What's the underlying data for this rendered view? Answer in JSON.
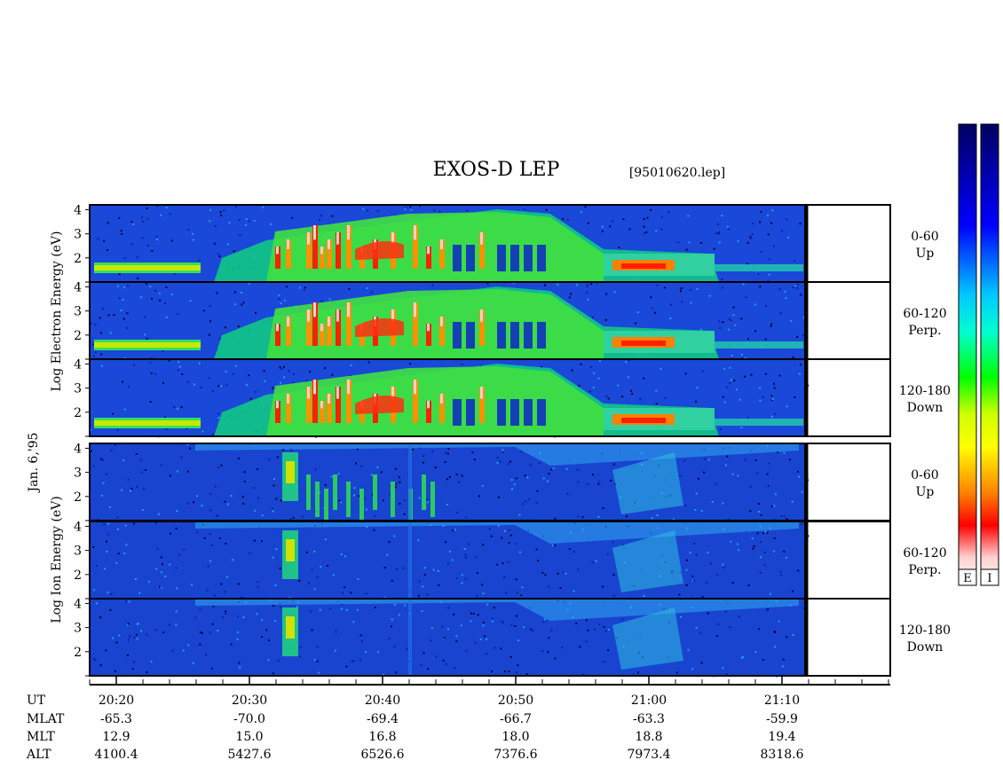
{
  "title": "EXOS-D LEP",
  "file_label": "[95010620.lep]",
  "date_label": "Jan. 6,'95",
  "electron_ylabel": "Log  Electron  Energy  (eV)",
  "ion_ylabel": "Log  Ion  Energy  (eV)",
  "panels": [
    {
      "species": "Electron",
      "angle": "0-60",
      "dir": "Up"
    },
    {
      "species": "Electron",
      "angle": "60-120",
      "dir": "Perp."
    },
    {
      "species": "Electron",
      "angle": "120-180",
      "dir": "Down"
    },
    {
      "species": "Ion",
      "angle": "0-60",
      "dir": "Up"
    },
    {
      "species": "Ion",
      "angle": "60-120",
      "dir": "Perp."
    },
    {
      "species": "Ion",
      "angle": "120-180",
      "dir": "Down"
    }
  ],
  "colorbar_labels": [
    "E",
    "I"
  ],
  "colors": {
    "background_spectrogram": "#1040d0",
    "colorbar": [
      "#000060",
      "#0000ff",
      "#00c8ff",
      "#00ffd0",
      "#00ff00",
      "#d0ff00",
      "#ffff00",
      "#ff8000",
      "#ff0000",
      "#ffd0d0",
      "#ffffff"
    ]
  },
  "chart_data": {
    "type": "heatmap",
    "title": "EXOS-D LEP",
    "xlabel": "UT",
    "ylabel": "Log Energy (eV)",
    "ylim": [
      1,
      4.2
    ],
    "yticks": [
      2,
      3,
      4
    ],
    "xticks": [
      "20:20",
      "20:30",
      "20:40",
      "20:50",
      "21:00",
      "21:10"
    ],
    "ephemeris": [
      {
        "name": "UT",
        "values": [
          "20:20",
          "20:30",
          "20:40",
          "20:50",
          "21:00",
          "21:10"
        ]
      },
      {
        "name": "MLAT",
        "values": [
          "-65.3",
          "-70.0",
          "-69.4",
          "-66.7",
          "-63.3",
          "-59.9"
        ]
      },
      {
        "name": "MLT",
        "values": [
          "12.9",
          "15.0",
          "16.8",
          "18.0",
          "18.8",
          "19.4"
        ]
      },
      {
        "name": "ALT",
        "values": [
          "4100.4",
          "5427.6",
          "6526.6",
          "7376.6",
          "7973.4",
          "8318.6"
        ]
      }
    ]
  }
}
